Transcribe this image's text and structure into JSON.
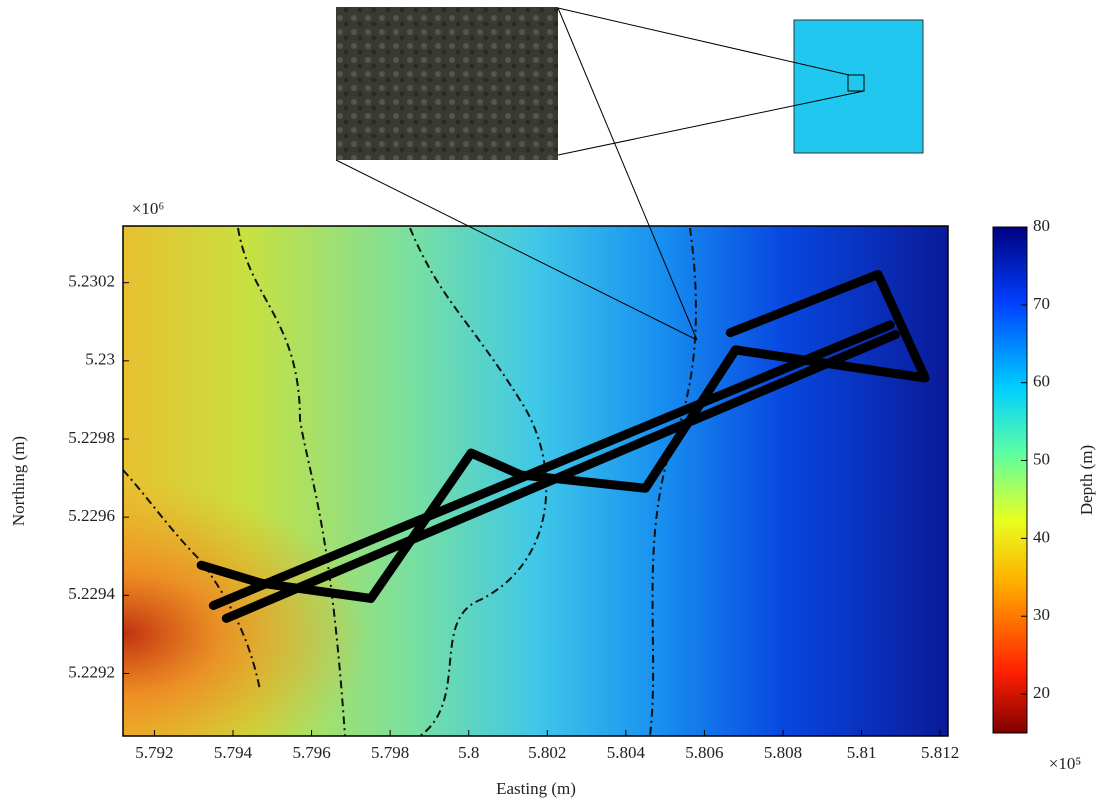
{
  "chart_data": {
    "type": "map",
    "xlabel": "Easting (m)",
    "ylabel": "Northing (m)",
    "x_offset_label": "×10⁵",
    "y_offset_label": "×10⁶",
    "xlim": [
      5.7912,
      5.8122
    ],
    "ylim": [
      5.22904,
      5.230345
    ],
    "xticks": [
      5.792,
      5.794,
      5.796,
      5.798,
      5.8,
      5.802,
      5.804,
      5.806,
      5.808,
      5.81,
      5.812
    ],
    "yticks": [
      5.2292,
      5.2294,
      5.2296,
      5.2298,
      5.23,
      5.2302
    ],
    "colorbar": {
      "label": "Depth (m)",
      "lim": [
        15,
        80
      ],
      "ticks": [
        20,
        30,
        40,
        50,
        60,
        70,
        80
      ]
    },
    "series": [
      {
        "color": "#000000",
        "x": [
          5.79319,
          5.79472,
          5.79751,
          5.80006,
          5.80133,
          5.8045,
          5.80679,
          5.81162,
          5.81042,
          5.80666
        ],
        "values": [
          5.229477,
          5.229431,
          5.229392,
          5.229764,
          5.229708,
          5.229674,
          5.230028,
          5.229956,
          5.230221,
          5.230072
        ]
      },
      {
        "color": "#000000",
        "x": [
          5.7935,
          5.81073
        ],
        "values": [
          5.229374,
          5.230092
        ]
      },
      {
        "color": "#000000",
        "x": [
          5.79383,
          5.81086
        ],
        "values": [
          5.229341,
          5.230067
        ]
      }
    ]
  }
}
